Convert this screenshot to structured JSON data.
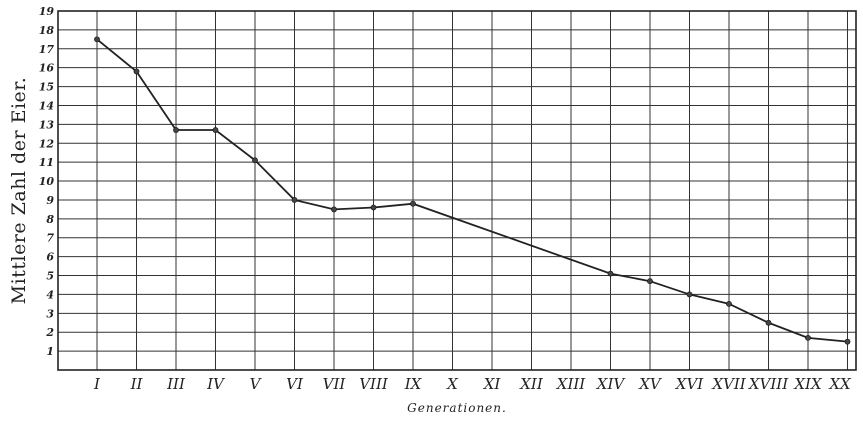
{
  "chart_data": {
    "type": "line",
    "xlabel": "Generationen.",
    "ylabel": "Mittlere Zahl der Eier.",
    "categories": [
      "I",
      "II",
      "III",
      "IV",
      "V",
      "VI",
      "VII",
      "VIII",
      "IX",
      "X",
      "XI",
      "XII",
      "XIII",
      "XIV",
      "XV",
      "XVI",
      "XVII",
      "XVIII",
      "XIX",
      "XX"
    ],
    "y_ticks": [
      1,
      2,
      3,
      4,
      5,
      6,
      7,
      8,
      9,
      10,
      11,
      12,
      13,
      14,
      15,
      16,
      17,
      18,
      19
    ],
    "y_tick_labels": [
      "1",
      "2",
      "3",
      "4",
      "5",
      "6",
      "7",
      "8",
      "9",
      "10",
      "11",
      "12",
      "13",
      "14",
      "15",
      "16",
      "17",
      "18",
      "19"
    ],
    "x_tick_labels": [
      "I",
      "II",
      "III",
      "IV",
      "V",
      "VI",
      "VII",
      "VIII",
      "IX",
      "X",
      "XI",
      "XII",
      "XIII",
      "XIV",
      "XV",
      "XVI",
      "XVII",
      "XVIII",
      "XIX",
      "XX"
    ],
    "ylim": [
      0,
      19
    ],
    "grid": true,
    "series": [
      {
        "values": [
          17.5,
          15.8,
          12.7,
          12.7,
          11.1,
          9.0,
          8.5,
          8.6,
          8.8,
          null,
          null,
          null,
          null,
          5.1,
          4.7,
          4.0,
          3.5,
          2.5,
          1.7,
          1.5
        ],
        "interpolated_segment": {
          "from": "IX",
          "to": "XIV"
        }
      }
    ]
  }
}
